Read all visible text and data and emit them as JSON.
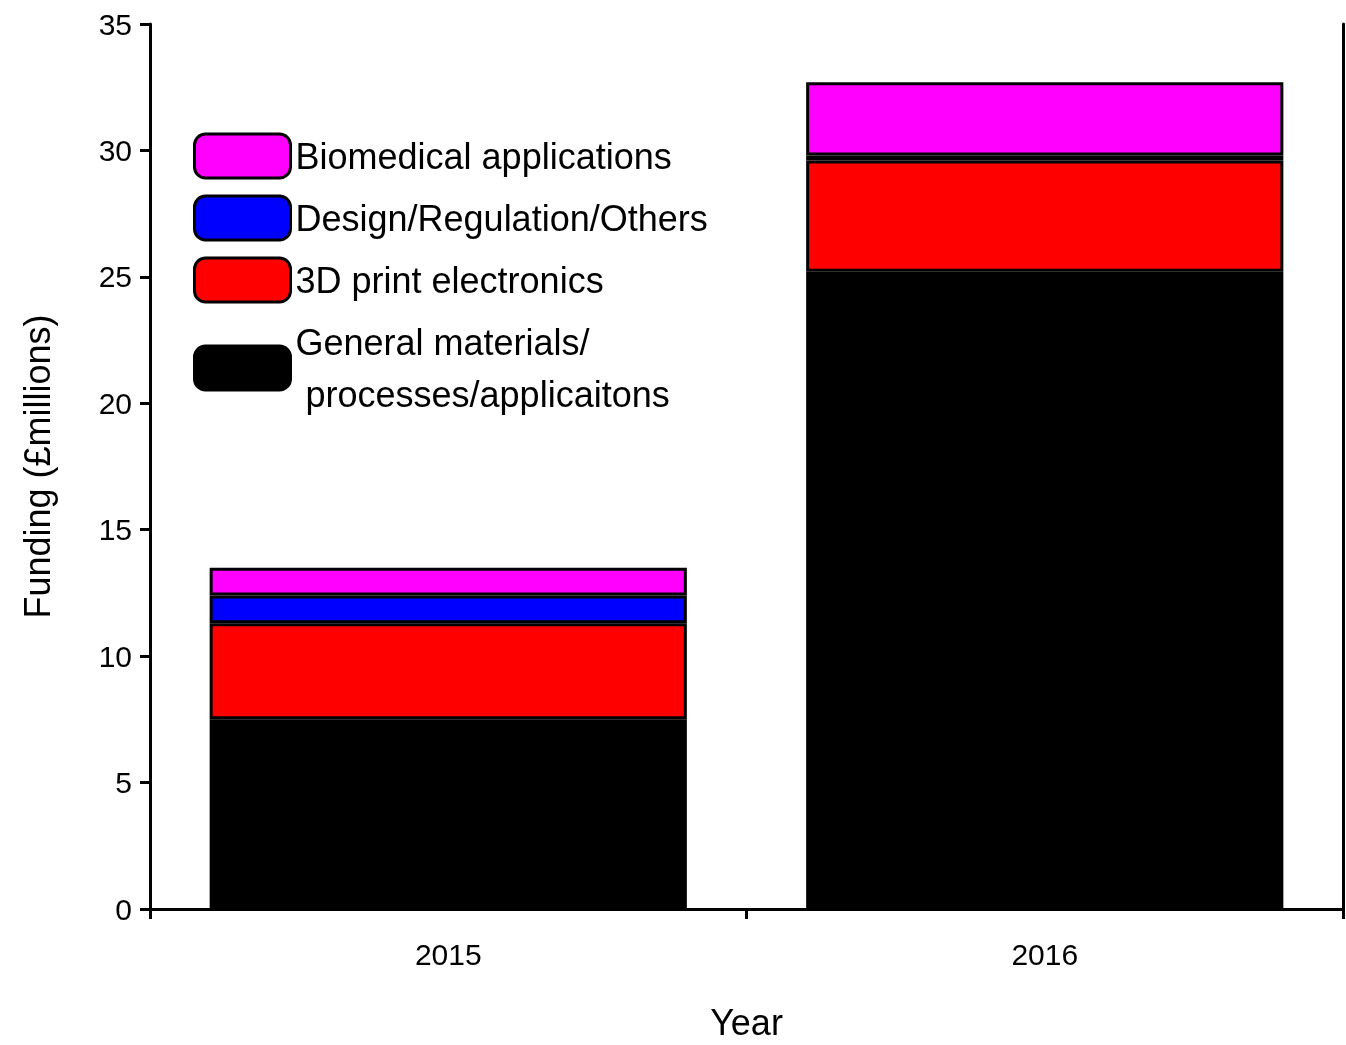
{
  "chart_data": {
    "type": "bar",
    "xlabel": "Year",
    "ylabel": "Funding (£millions)",
    "categories": [
      "2015",
      "2016"
    ],
    "series": [
      {
        "name": "General materials/\n processes/applicaitons",
        "color": "#000000",
        "values": [
          7.5,
          25.2
        ]
      },
      {
        "name": "3D print electronics",
        "color": "#ff0000",
        "values": [
          3.8,
          4.4
        ]
      },
      {
        "name": "Design/Regulation/Others",
        "color": "#0000ff",
        "values": [
          1.1,
          0.2
        ]
      },
      {
        "name": "Biomedical applications",
        "color": "#ff00ff",
        "values": [
          1.1,
          2.9
        ]
      }
    ],
    "stacked": true,
    "ylim": [
      0,
      35
    ],
    "yticks": [
      0,
      5,
      10,
      15,
      20,
      25,
      30,
      35
    ],
    "grid": false,
    "legend": "top left"
  }
}
